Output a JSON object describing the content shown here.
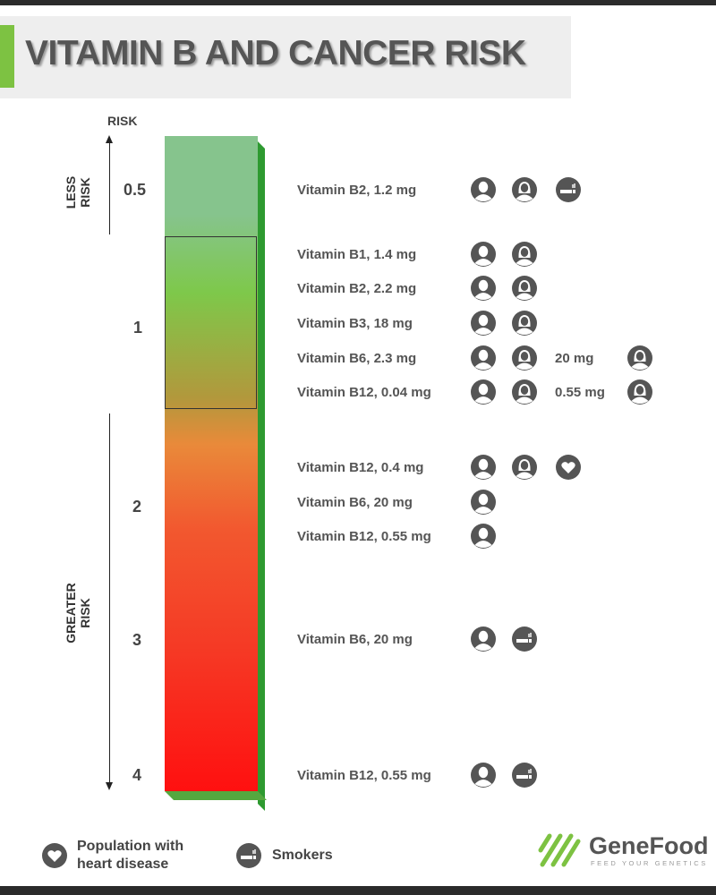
{
  "title": "VITAMIN B AND CANCER RISK",
  "axis": {
    "heading": "RISK",
    "less_label": "LESS RISK",
    "greater_label": "GREATER RISK"
  },
  "scale": [
    "0.5",
    "1",
    "2",
    "3",
    "4"
  ],
  "colors": {
    "accent": "#7dc242",
    "less_risk": "#86c48d",
    "neutral": "#7ec84a",
    "greater_risk": "#ff1010",
    "icon": "#555555"
  },
  "rows": [
    {
      "label": "Vitamin B2, 1.2 mg",
      "icons": [
        "male-icon",
        "female-icon",
        "cigarette-icon"
      ]
    },
    {
      "label": "Vitamin B1, 1.4 mg",
      "icons": [
        "male-icon",
        "female-icon"
      ]
    },
    {
      "label": "Vitamin B2, 2.2 mg",
      "icons": [
        "male-icon",
        "female-icon"
      ]
    },
    {
      "label": "Vitamin B3, 18 mg",
      "icons": [
        "male-icon",
        "female-icon"
      ]
    },
    {
      "label": "Vitamin B6, 2.3 mg",
      "icons": [
        "male-icon",
        "female-icon"
      ],
      "extra_label": "20 mg",
      "extra_icon": "female-icon"
    },
    {
      "label": "Vitamin B12, 0.04 mg",
      "icons": [
        "male-icon",
        "female-icon"
      ],
      "extra_label": "0.55 mg",
      "extra_icon": "female-icon"
    },
    {
      "label": "Vitamin B12, 0.4 mg",
      "icons": [
        "male-icon",
        "female-icon",
        "heart-icon"
      ]
    },
    {
      "label": "Vitamin B6, 20 mg",
      "icons": [
        "male-icon"
      ]
    },
    {
      "label": "Vitamin B12, 0.55 mg",
      "icons": [
        "male-icon"
      ]
    },
    {
      "label": "Vitamin B6, 20 mg",
      "icons": [
        "male-icon",
        "cigarette-icon"
      ]
    },
    {
      "label": "Vitamin B12, 0.55 mg",
      "icons": [
        "male-icon",
        "cigarette-icon"
      ]
    }
  ],
  "legend": {
    "heart": "Population with heart disease",
    "smokers": "Smokers"
  },
  "logo": {
    "gene": "Gene",
    "food": "Food",
    "tagline": "FEED YOUR GENETICS"
  }
}
